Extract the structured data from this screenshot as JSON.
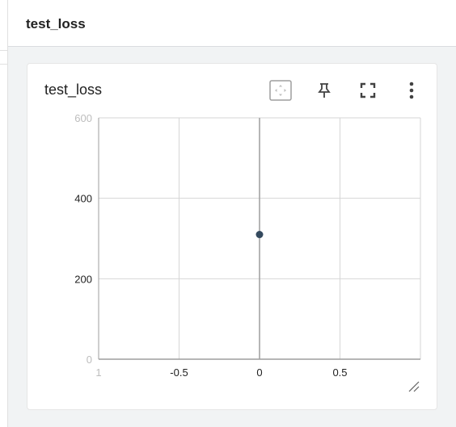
{
  "header": {
    "title": "test_loss"
  },
  "card": {
    "title": "test_loss",
    "toolbar": [
      {
        "name": "fit-domain-icon"
      },
      {
        "name": "pin-icon"
      },
      {
        "name": "fullscreen-icon"
      },
      {
        "name": "more-vert-icon"
      }
    ]
  },
  "chart_data": {
    "type": "scatter",
    "title": "test_loss",
    "xlabel": "",
    "ylabel": "",
    "xlim": [
      -1,
      1
    ],
    "ylim": [
      0,
      600
    ],
    "x_ticks": [
      "1",
      "-0.5",
      "0",
      "0.5"
    ],
    "y_ticks": [
      "0",
      "200",
      "400",
      "600"
    ],
    "grid": true,
    "series": [
      {
        "color": "#34495e",
        "points": [
          {
            "x": 0,
            "y": 310
          }
        ]
      }
    ]
  }
}
